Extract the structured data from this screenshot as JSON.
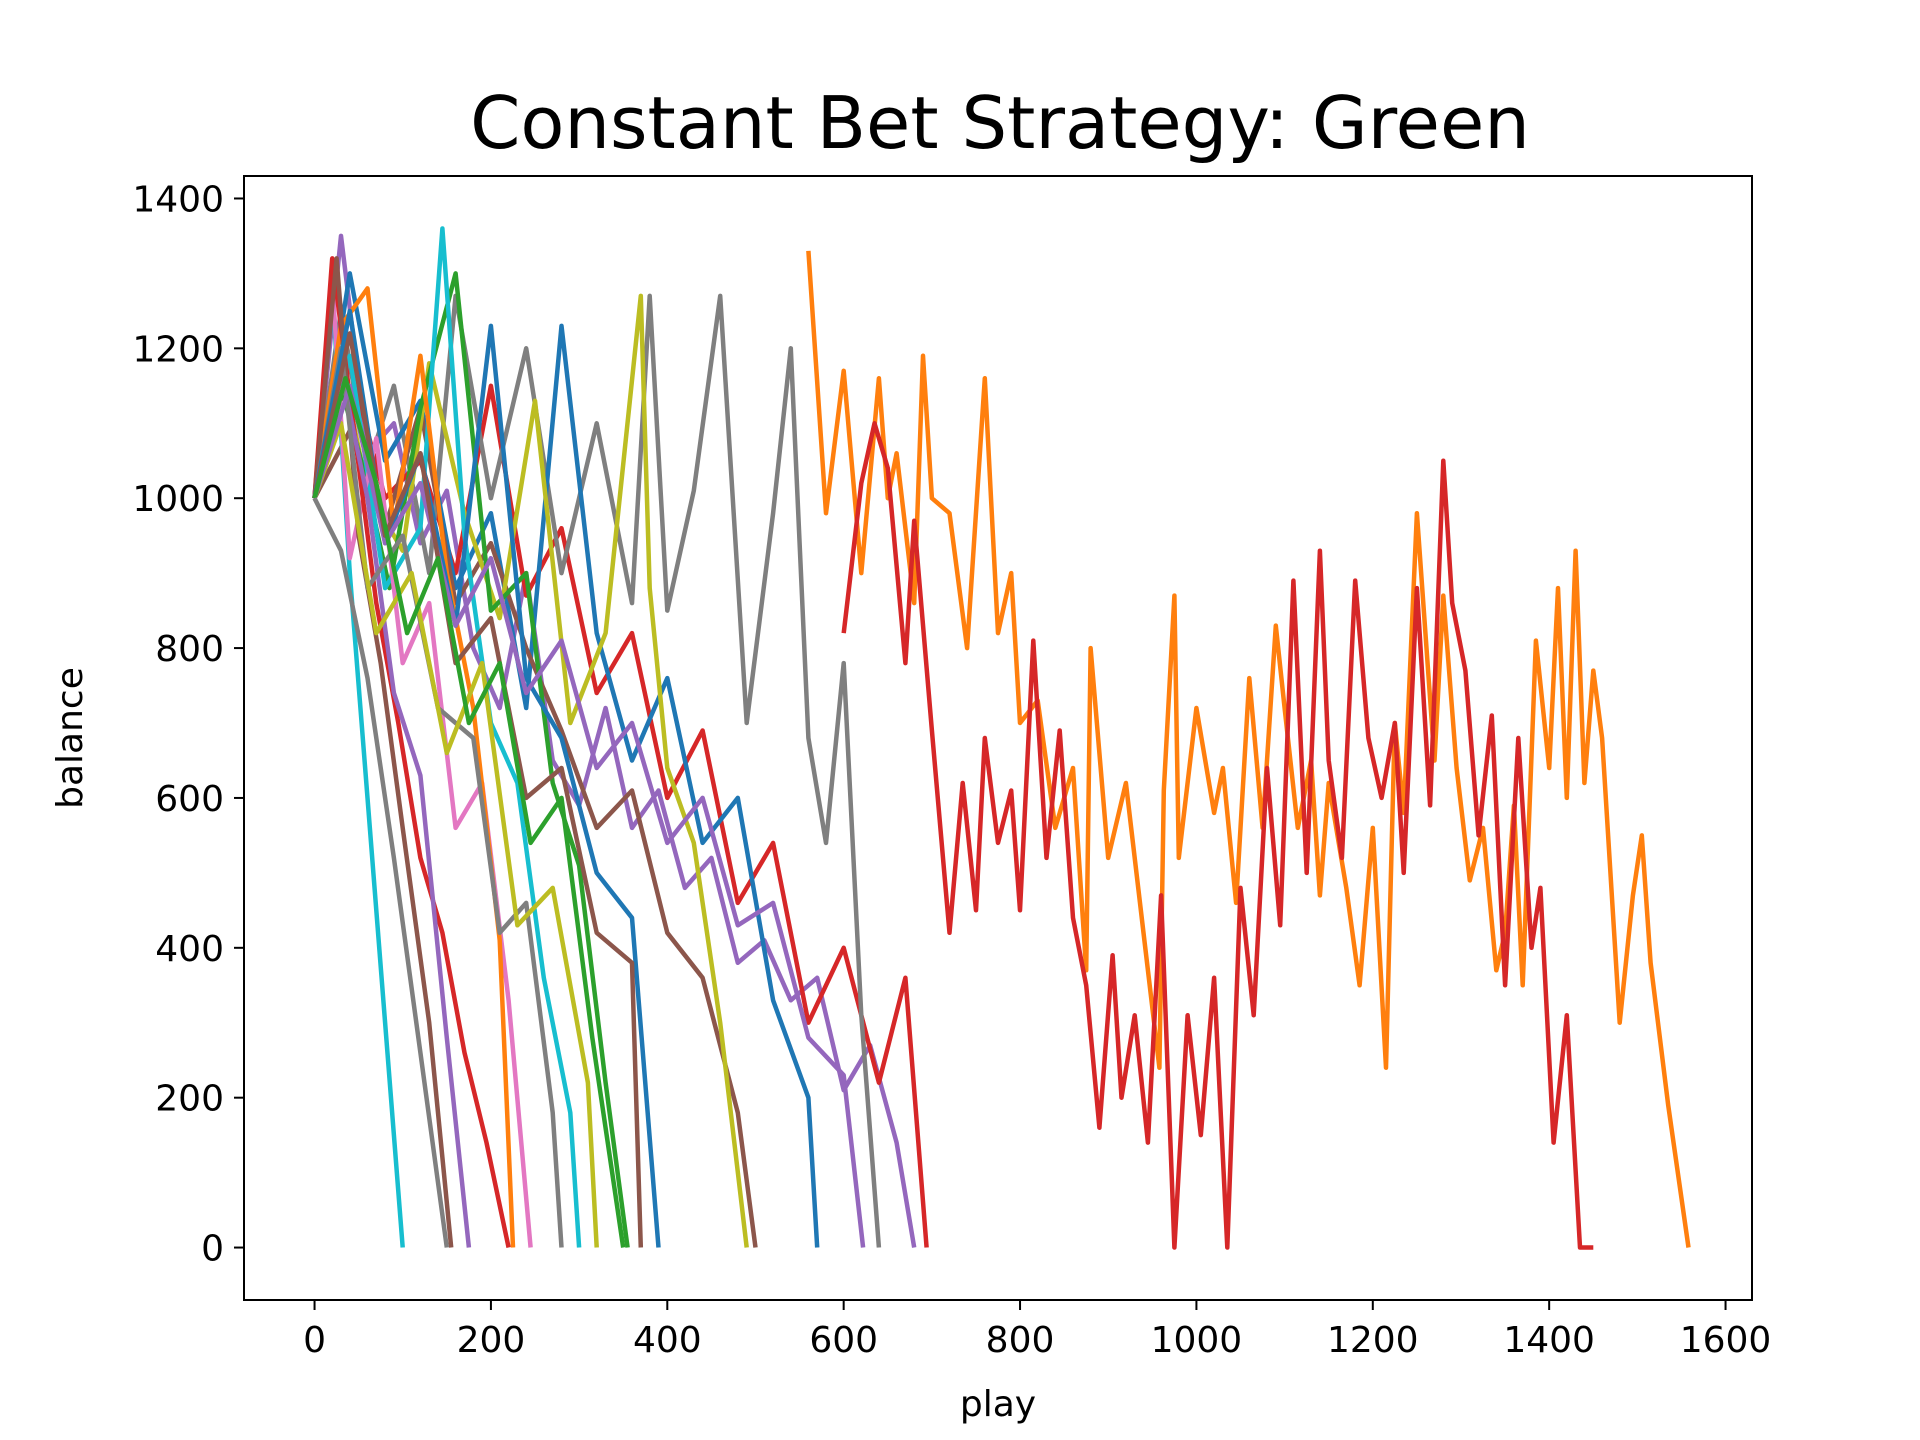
{
  "chart_data": {
    "type": "line",
    "title": "Constant Bet Strategy: Green",
    "xlabel": "play",
    "ylabel": "balance",
    "xlim": [
      -80,
      1630
    ],
    "ylim": [
      -70,
      1430
    ],
    "x_ticks": [
      0,
      200,
      400,
      600,
      800,
      1000,
      1200,
      1400,
      1600
    ],
    "y_ticks": [
      0,
      200,
      400,
      600,
      800,
      1000,
      1200,
      1400
    ],
    "grid": false,
    "legend": "none",
    "colors": [
      "#1f77b4",
      "#ff7f0e",
      "#2ca02c",
      "#d62728",
      "#9467bd",
      "#8c564b",
      "#e377c2",
      "#7f7f7f",
      "#bcbd22",
      "#17becf"
    ],
    "series": [
      {
        "color": "#ff7f0e",
        "x": [
          560,
          580,
          600,
          620,
          640,
          650,
          660,
          680,
          690,
          700,
          720,
          740,
          760,
          775,
          790,
          800,
          820,
          840,
          860,
          875,
          880,
          900,
          920,
          940,
          958,
          963,
          975,
          980,
          1000,
          1020,
          1030,
          1045,
          1060,
          1075,
          1090,
          1100,
          1115,
          1130,
          1140,
          1150,
          1170,
          1185,
          1200,
          1215,
          1225,
          1235,
          1250,
          1270,
          1280,
          1295,
          1310,
          1325,
          1340,
          1350,
          1360,
          1370,
          1385,
          1400,
          1410,
          1420,
          1430,
          1440,
          1450,
          1460,
          1480,
          1495,
          1505,
          1515,
          1535,
          1558
        ],
        "y": [
          1330,
          980,
          1170,
          900,
          1160,
          1000,
          1060,
          860,
          1190,
          1000,
          980,
          800,
          1160,
          820,
          900,
          700,
          730,
          560,
          640,
          370,
          800,
          520,
          620,
          420,
          240,
          610,
          870,
          520,
          720,
          580,
          640,
          460,
          760,
          560,
          830,
          720,
          560,
          650,
          470,
          620,
          480,
          350,
          560,
          240,
          700,
          580,
          980,
          650,
          870,
          640,
          490,
          560,
          370,
          420,
          590,
          350,
          810,
          640,
          880,
          600,
          930,
          620,
          770,
          680,
          300,
          470,
          550,
          380,
          190,
          0
        ]
      },
      {
        "color": "#d62728",
        "x": [
          600,
          620,
          635,
          650,
          670,
          680,
          700,
          720,
          735,
          750,
          760,
          775,
          790,
          800,
          815,
          830,
          845,
          860,
          875,
          890,
          905,
          915,
          930,
          945,
          960,
          975,
          990,
          1005,
          1020,
          1035,
          1050,
          1065,
          1080,
          1095,
          1110,
          1125,
          1140,
          1150,
          1165,
          1180,
          1195,
          1210,
          1225,
          1235,
          1250,
          1265,
          1280,
          1290,
          1305,
          1320,
          1335,
          1350,
          1365,
          1380,
          1390,
          1405,
          1420,
          1435,
          1450
        ],
        "y": [
          820,
          1020,
          1100,
          1040,
          780,
          970,
          690,
          420,
          620,
          450,
          680,
          540,
          610,
          450,
          810,
          520,
          690,
          440,
          350,
          160,
          390,
          200,
          310,
          140,
          470,
          0,
          310,
          150,
          360,
          0,
          480,
          310,
          640,
          430,
          890,
          500,
          930,
          650,
          520,
          890,
          680,
          600,
          700,
          500,
          880,
          590,
          1050,
          860,
          770,
          550,
          710,
          350,
          680,
          400,
          480,
          140,
          310,
          0,
          0
        ]
      },
      {
        "color": "#9467bd",
        "x": [
          0,
          30,
          60,
          90,
          120,
          150,
          180,
          210,
          240,
          270,
          300,
          330,
          360,
          390,
          420,
          450,
          480,
          510,
          540,
          570,
          600,
          630,
          660,
          680
        ],
        "y": [
          1000,
          1350,
          1060,
          1100,
          940,
          1010,
          800,
          720,
          900,
          650,
          590,
          720,
          560,
          610,
          480,
          520,
          380,
          410,
          330,
          360,
          210,
          270,
          140,
          0
        ]
      },
      {
        "color": "#d62728",
        "x": [
          0,
          40,
          80,
          120,
          160,
          200,
          240,
          280,
          320,
          360,
          400,
          440,
          480,
          520,
          560,
          600,
          640,
          670,
          694
        ],
        "y": [
          1000,
          1180,
          1000,
          1050,
          900,
          1150,
          870,
          960,
          740,
          820,
          600,
          690,
          460,
          540,
          300,
          400,
          220,
          360,
          0
        ]
      },
      {
        "color": "#7f7f7f",
        "x": [
          0,
          30,
          60,
          90,
          130,
          160,
          200,
          240,
          280,
          320,
          360,
          380,
          400,
          430,
          460,
          490,
          520,
          540,
          560,
          580,
          600,
          620,
          640
        ],
        "y": [
          1000,
          1250,
          1040,
          1150,
          900,
          1270,
          1000,
          1200,
          900,
          1100,
          860,
          1270,
          850,
          1010,
          1270,
          700,
          980,
          1200,
          680,
          540,
          780,
          310,
          0
        ]
      },
      {
        "color": "#1f77b4",
        "x": [
          0,
          40,
          80,
          120,
          160,
          200,
          240,
          280,
          320,
          360,
          400,
          440,
          480,
          520,
          560,
          570
        ],
        "y": [
          1000,
          1300,
          1050,
          1130,
          880,
          980,
          720,
          1230,
          820,
          650,
          760,
          540,
          600,
          330,
          200,
          0
        ]
      },
      {
        "color": "#8c564b",
        "x": [
          0,
          40,
          80,
          120,
          160,
          200,
          240,
          280,
          320,
          360,
          400,
          440,
          480,
          500
        ],
        "y": [
          1000,
          1090,
          960,
          1120,
          860,
          940,
          800,
          690,
          560,
          610,
          420,
          360,
          180,
          0
        ]
      },
      {
        "color": "#bcbd22",
        "x": [
          0,
          30,
          60,
          100,
          130,
          170,
          210,
          250,
          290,
          330,
          370,
          380,
          400,
          430,
          460,
          490
        ],
        "y": [
          1000,
          1180,
          1010,
          930,
          1180,
          980,
          840,
          1130,
          700,
          820,
          1270,
          880,
          640,
          540,
          300,
          0
        ]
      },
      {
        "color": "#2ca02c",
        "x": [
          0,
          25,
          55,
          85,
          120,
          160,
          200,
          240,
          270,
          300,
          330,
          355
        ],
        "y": [
          1000,
          1170,
          1040,
          880,
          1120,
          1300,
          850,
          900,
          620,
          510,
          220,
          0
        ]
      },
      {
        "color": "#17becf",
        "x": [
          0,
          20,
          40,
          60,
          80,
          100
        ],
        "y": [
          1000,
          1280,
          900,
          600,
          300,
          0
        ]
      },
      {
        "color": "#17becf",
        "x": [
          0,
          40,
          80,
          120,
          145,
          170,
          200,
          230,
          260,
          290,
          300
        ],
        "y": [
          1000,
          1190,
          880,
          960,
          1360,
          950,
          700,
          620,
          360,
          180,
          0
        ]
      },
      {
        "color": "#e377c2",
        "x": [
          0,
          20,
          40,
          70,
          100,
          130,
          160,
          190,
          220,
          245
        ],
        "y": [
          1000,
          1290,
          920,
          1080,
          780,
          860,
          560,
          620,
          330,
          0
        ]
      },
      {
        "color": "#ff7f0e",
        "x": [
          0,
          30,
          60,
          90,
          120,
          150,
          180,
          210,
          225
        ],
        "y": [
          1000,
          1230,
          1280,
          960,
          1190,
          900,
          720,
          410,
          0
        ]
      },
      {
        "color": "#d62728",
        "x": [
          0,
          20,
          45,
          70,
          95,
          120,
          145,
          170,
          195,
          220
        ],
        "y": [
          1000,
          1320,
          1090,
          860,
          700,
          520,
          420,
          260,
          140,
          0
        ]
      },
      {
        "color": "#8c564b",
        "x": [
          0,
          25,
          50,
          75,
          100,
          130,
          155
        ],
        "y": [
          1000,
          1320,
          950,
          780,
          560,
          300,
          0
        ]
      },
      {
        "color": "#9467bd",
        "x": [
          0,
          30,
          60,
          90,
          120,
          150,
          175
        ],
        "y": [
          1000,
          1170,
          1000,
          740,
          630,
          280,
          0
        ]
      },
      {
        "color": "#7f7f7f",
        "x": [
          0,
          30,
          60,
          100,
          140,
          180,
          210,
          240,
          270,
          280
        ],
        "y": [
          1000,
          1200,
          880,
          950,
          720,
          680,
          420,
          460,
          180,
          0
        ]
      },
      {
        "color": "#1f77b4",
        "x": [
          0,
          40,
          80,
          120,
          160,
          200,
          240,
          280,
          320,
          360,
          390
        ],
        "y": [
          1000,
          1250,
          940,
          1060,
          830,
          1230,
          760,
          680,
          500,
          440,
          0
        ]
      },
      {
        "color": "#bcbd22",
        "x": [
          0,
          30,
          70,
          110,
          150,
          190,
          230,
          270,
          310,
          320
        ],
        "y": [
          1000,
          1100,
          820,
          900,
          660,
          780,
          430,
          480,
          220,
          0
        ]
      },
      {
        "color": "#9467bd",
        "x": [
          0,
          40,
          80,
          120,
          160,
          200,
          240,
          280,
          320,
          360,
          400,
          440,
          480,
          520,
          560,
          600,
          622
        ],
        "y": [
          1000,
          1150,
          940,
          1020,
          830,
          920,
          740,
          810,
          640,
          700,
          540,
          600,
          430,
          460,
          280,
          230,
          0
        ]
      },
      {
        "color": "#8c564b",
        "x": [
          0,
          40,
          80,
          120,
          160,
          200,
          240,
          280,
          320,
          360,
          370
        ],
        "y": [
          1000,
          1220,
          950,
          1060,
          780,
          840,
          600,
          640,
          420,
          380,
          0
        ]
      },
      {
        "color": "#2ca02c",
        "x": [
          0,
          35,
          70,
          105,
          140,
          175,
          210,
          245,
          280,
          315,
          350
        ],
        "y": [
          1000,
          1160,
          1020,
          820,
          920,
          700,
          780,
          540,
          600,
          280,
          0
        ]
      },
      {
        "color": "#7f7f7f",
        "x": [
          0,
          30,
          60,
          90,
          120,
          150
        ],
        "y": [
          1000,
          930,
          760,
          520,
          260,
          0
        ]
      }
    ]
  }
}
